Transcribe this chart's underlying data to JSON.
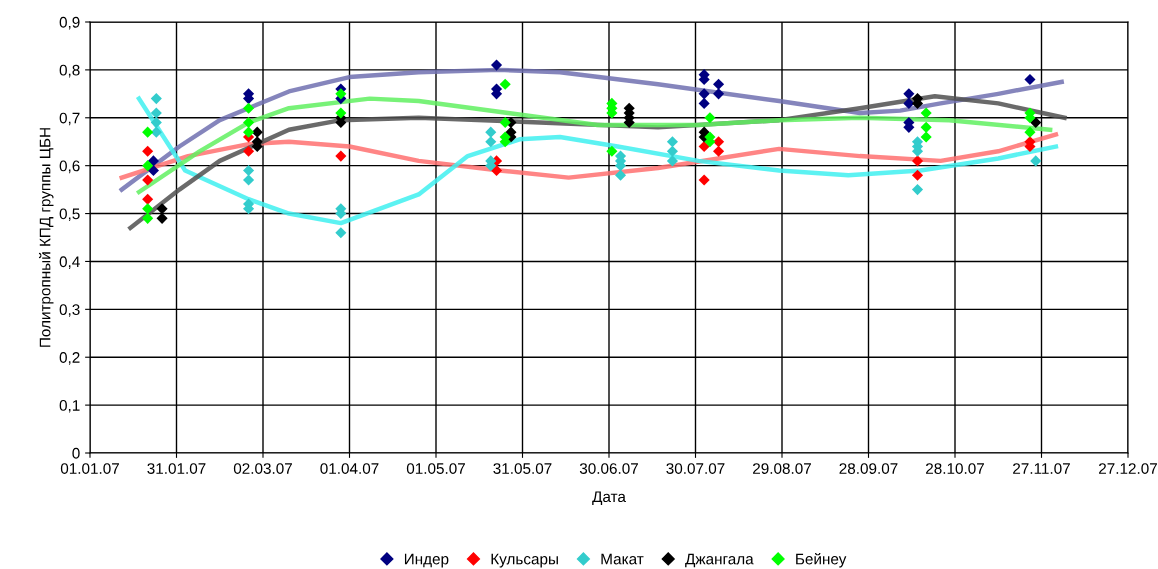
{
  "chart_data": {
    "type": "scatter",
    "xlabel": "Дата",
    "ylabel": "Политропный КПД группы ЦБН",
    "xlim": [
      "2007-01-01",
      "2007-12-27"
    ],
    "xticks": [
      {
        "value": "2007-01-01",
        "label": "01.01.07"
      },
      {
        "value": "2007-01-31",
        "label": "31.01.07"
      },
      {
        "value": "2007-03-02",
        "label": "02.03.07"
      },
      {
        "value": "2007-04-01",
        "label": "01.04.07"
      },
      {
        "value": "2007-05-01",
        "label": "01.05.07"
      },
      {
        "value": "2007-05-31",
        "label": "31.05.07"
      },
      {
        "value": "2007-06-30",
        "label": "30.06.07"
      },
      {
        "value": "2007-07-30",
        "label": "30.07.07"
      },
      {
        "value": "2007-08-29",
        "label": "29.08.07"
      },
      {
        "value": "2007-09-28",
        "label": "28.09.07"
      },
      {
        "value": "2007-10-28",
        "label": "28.10.07"
      },
      {
        "value": "2007-11-27",
        "label": "27.11.07"
      },
      {
        "value": "2007-12-27",
        "label": "27.12.07"
      }
    ],
    "ylim": [
      0,
      0.9
    ],
    "yticks": [
      0,
      {
        "value": 0.1,
        "label": "0,1"
      },
      {
        "value": 0.2,
        "label": "0,2"
      },
      {
        "value": 0.3,
        "label": "0,3"
      },
      {
        "value": 0.4,
        "label": "0,4"
      },
      {
        "value": 0.5,
        "label": "0,5"
      },
      {
        "value": 0.6,
        "label": "0,6"
      },
      {
        "value": 0.7,
        "label": "0,7"
      },
      {
        "value": 0.8,
        "label": "0,8"
      },
      {
        "value": 0.9,
        "label": "0,9"
      }
    ],
    "grid": true,
    "legend": "bottom",
    "marker": "diamond",
    "series": [
      {
        "type": "line",
        "color": "#7070b0",
        "marker": "none",
        "x": [
          "2007-01-12",
          "2007-02-01",
          "2007-02-15",
          "2007-03-11",
          "2007-04-01",
          "2007-04-25",
          "2007-05-23",
          "2007-06-13",
          "2007-07-17",
          "2007-08-28",
          "2007-09-25",
          "2007-10-09",
          "2007-10-23",
          "2007-11-12",
          "2007-12-04"
        ],
        "values": [
          0.55,
          0.64,
          0.695,
          0.755,
          0.785,
          0.795,
          0.8,
          0.795,
          0.77,
          0.735,
          0.71,
          0.715,
          0.73,
          0.75,
          0.775
        ]
      },
      {
        "type": "line",
        "color": "#ff7070",
        "marker": "none",
        "x": [
          "2007-01-12",
          "2007-02-04",
          "2007-02-25",
          "2007-03-11",
          "2007-04-01",
          "2007-04-25",
          "2007-05-23",
          "2007-06-16",
          "2007-07-17",
          "2007-08-28",
          "2007-09-25",
          "2007-10-23",
          "2007-11-12",
          "2007-12-02"
        ],
        "values": [
          0.575,
          0.62,
          0.645,
          0.65,
          0.64,
          0.61,
          0.59,
          0.575,
          0.595,
          0.635,
          0.62,
          0.61,
          0.63,
          0.665
        ]
      },
      {
        "type": "line",
        "color": "#40f0f0",
        "marker": "none",
        "x": [
          "2007-01-18",
          "2007-02-03",
          "2007-02-25",
          "2007-03-11",
          "2007-03-29",
          "2007-04-25",
          "2007-05-12",
          "2007-05-30",
          "2007-06-13",
          "2007-07-03",
          "2007-07-31",
          "2007-08-28",
          "2007-09-21",
          "2007-10-16",
          "2007-11-12",
          "2007-12-02"
        ],
        "values": [
          0.74,
          0.59,
          0.53,
          0.5,
          0.48,
          0.54,
          0.62,
          0.655,
          0.66,
          0.64,
          0.61,
          0.59,
          0.58,
          0.59,
          0.615,
          0.64
        ]
      },
      {
        "type": "line",
        "color": "#505050",
        "marker": "none",
        "x": [
          "2007-01-15",
          "2007-02-01",
          "2007-02-15",
          "2007-03-11",
          "2007-03-29",
          "2007-04-25",
          "2007-06-06",
          "2007-07-17",
          "2007-08-28",
          "2007-09-25",
          "2007-10-21",
          "2007-11-12",
          "2007-12-05"
        ],
        "values": [
          0.47,
          0.55,
          0.61,
          0.675,
          0.695,
          0.7,
          0.69,
          0.68,
          0.695,
          0.72,
          0.745,
          0.73,
          0.7
        ]
      },
      {
        "type": "line",
        "color": "#60f060",
        "marker": "none",
        "x": [
          "2007-01-18",
          "2007-02-08",
          "2007-02-25",
          "2007-03-11",
          "2007-04-08",
          "2007-04-25",
          "2007-05-26",
          "2007-06-26",
          "2007-07-31",
          "2007-08-28",
          "2007-09-25",
          "2007-10-26",
          "2007-11-30"
        ],
        "values": [
          0.545,
          0.63,
          0.69,
          0.72,
          0.74,
          0.735,
          0.71,
          0.685,
          0.685,
          0.695,
          0.7,
          0.695,
          0.675
        ]
      },
      {
        "name": "Индер",
        "color": "#000080",
        "x": [
          "2007-01-23",
          "2007-01-23",
          "2007-02-25",
          "2007-02-25",
          "2007-03-29",
          "2007-03-29",
          "2007-05-22",
          "2007-05-22",
          "2007-05-22",
          "2007-08-02",
          "2007-08-02",
          "2007-08-02",
          "2007-08-02",
          "2007-08-07",
          "2007-08-07",
          "2007-10-12",
          "2007-10-12",
          "2007-10-12",
          "2007-10-12",
          "2007-11-23"
        ],
        "values": [
          0.61,
          0.59,
          0.75,
          0.74,
          0.76,
          0.74,
          0.81,
          0.76,
          0.75,
          0.79,
          0.78,
          0.75,
          0.73,
          0.77,
          0.75,
          0.75,
          0.73,
          0.69,
          0.68,
          0.78
        ]
      },
      {
        "name": "Кульсары",
        "color": "#ff0000",
        "x": [
          "2007-01-21",
          "2007-01-21",
          "2007-01-21",
          "2007-02-25",
          "2007-02-25",
          "2007-03-29",
          "2007-05-22",
          "2007-05-22",
          "2007-08-02",
          "2007-08-02",
          "2007-08-07",
          "2007-08-07",
          "2007-10-15",
          "2007-10-15",
          "2007-11-23",
          "2007-11-23"
        ],
        "values": [
          0.63,
          0.57,
          0.53,
          0.66,
          0.63,
          0.62,
          0.61,
          0.59,
          0.57,
          0.64,
          0.65,
          0.63,
          0.61,
          0.58,
          0.64,
          0.65
        ]
      },
      {
        "name": "Макат",
        "color": "#33cccc",
        "x": [
          "2007-01-24",
          "2007-01-24",
          "2007-01-24",
          "2007-01-24",
          "2007-02-25",
          "2007-02-25",
          "2007-02-25",
          "2007-02-25",
          "2007-03-29",
          "2007-03-29",
          "2007-03-29",
          "2007-05-20",
          "2007-05-20",
          "2007-05-20",
          "2007-05-20",
          "2007-07-04",
          "2007-07-04",
          "2007-07-04",
          "2007-07-04",
          "2007-07-22",
          "2007-07-22",
          "2007-07-22",
          "2007-10-15",
          "2007-10-15",
          "2007-10-15",
          "2007-10-15",
          "2007-11-25"
        ],
        "values": [
          0.74,
          0.71,
          0.69,
          0.67,
          0.59,
          0.57,
          0.52,
          0.51,
          0.51,
          0.5,
          0.46,
          0.67,
          0.65,
          0.61,
          0.6,
          0.62,
          0.61,
          0.6,
          0.58,
          0.65,
          0.63,
          0.61,
          0.65,
          0.64,
          0.63,
          0.55,
          0.61
        ]
      },
      {
        "name": "Джангала",
        "color": "#000000",
        "x": [
          "2007-01-26",
          "2007-01-26",
          "2007-02-28",
          "2007-02-28",
          "2007-02-28",
          "2007-03-29",
          "2007-03-29",
          "2007-05-27",
          "2007-05-27",
          "2007-05-27",
          "2007-07-07",
          "2007-07-07",
          "2007-07-07",
          "2007-07-07",
          "2007-08-02",
          "2007-08-02",
          "2007-10-15",
          "2007-10-15",
          "2007-11-25"
        ],
        "values": [
          0.51,
          0.49,
          0.67,
          0.65,
          0.64,
          0.7,
          0.69,
          0.69,
          0.67,
          0.66,
          0.72,
          0.71,
          0.7,
          0.69,
          0.67,
          0.66,
          0.74,
          0.73,
          0.69
        ]
      },
      {
        "name": "Бейнеу",
        "color": "#00ff00",
        "x": [
          "2007-01-21",
          "2007-01-21",
          "2007-01-21",
          "2007-01-21",
          "2007-02-25",
          "2007-02-25",
          "2007-02-25",
          "2007-03-29",
          "2007-03-29",
          "2007-05-25",
          "2007-05-25",
          "2007-05-25",
          "2007-05-25",
          "2007-07-01",
          "2007-07-01",
          "2007-07-01",
          "2007-07-01",
          "2007-08-04",
          "2007-08-04",
          "2007-08-04",
          "2007-10-18",
          "2007-10-18",
          "2007-10-18",
          "2007-11-23",
          "2007-11-23",
          "2007-11-23"
        ],
        "values": [
          0.67,
          0.6,
          0.51,
          0.49,
          0.72,
          0.69,
          0.67,
          0.75,
          0.71,
          0.77,
          0.69,
          0.66,
          0.65,
          0.73,
          0.72,
          0.71,
          0.63,
          0.7,
          0.66,
          0.65,
          0.71,
          0.68,
          0.66,
          0.71,
          0.7,
          0.67
        ]
      }
    ]
  }
}
